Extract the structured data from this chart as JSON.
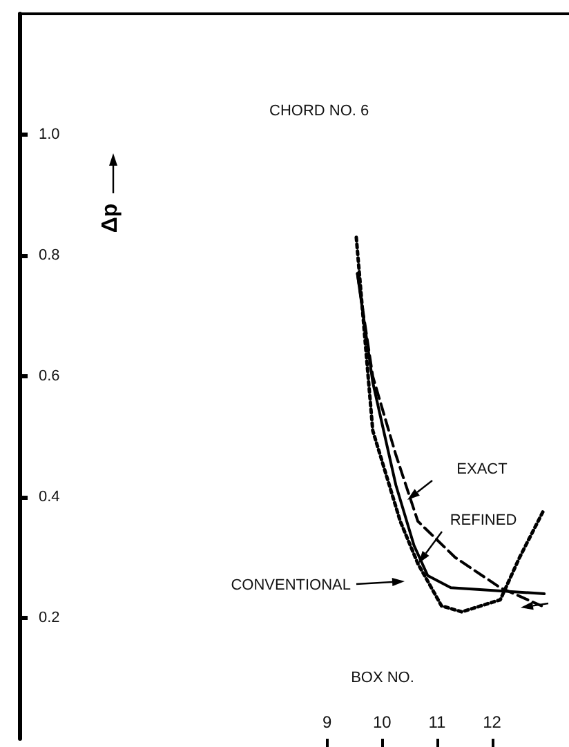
{
  "chart_data": {
    "type": "line",
    "title": "CHORD NO. 6",
    "xlabel": "BOX NO.",
    "ylabel": "Δp",
    "xlim": [
      3.4,
      13.4
    ],
    "xticks": [
      9,
      10,
      11,
      12
    ],
    "ylim": [
      0,
      1.2
    ],
    "yticks": [
      {
        "value": 0.2,
        "label": "0.2"
      },
      {
        "value": 0.4,
        "label": "0.4"
      },
      {
        "value": 0.6,
        "label": "0.6"
      },
      {
        "value": 0.8,
        "label": "0.8"
      },
      {
        "value": 1,
        "label": "1.0"
      }
    ],
    "grid": false,
    "marker": "none",
    "series": [
      {
        "color": "#000000",
        "line_style": "dashed",
        "x": [
          9.55,
          9.83,
          10.25,
          10.65,
          11.33,
          12.15,
          12.9
        ],
        "values": [
          0.77,
          0.6,
          0.47,
          0.36,
          0.3,
          0.25,
          0.22
        ]
      },
      {
        "color": "#000000",
        "line_style": "dotted",
        "x": [
          9.53,
          9.83,
          10.33,
          10.65,
          11.08,
          11.45,
          12.15,
          12.5,
          12.95
        ],
        "values": [
          0.83,
          0.51,
          0.36,
          0.29,
          0.22,
          0.21,
          0.23,
          0.3,
          0.38
        ]
      },
      {
        "color": "#000000",
        "line_style": "solid",
        "x": [
          9.55,
          9.83,
          10.25,
          10.58,
          10.83,
          11.25,
          12.95
        ],
        "values": [
          0.77,
          0.59,
          0.42,
          0.32,
          0.27,
          0.25,
          0.24
        ]
      }
    ],
    "annotations": [
      "EXACT",
      "REFINED",
      "CONVENTIONAL"
    ]
  }
}
